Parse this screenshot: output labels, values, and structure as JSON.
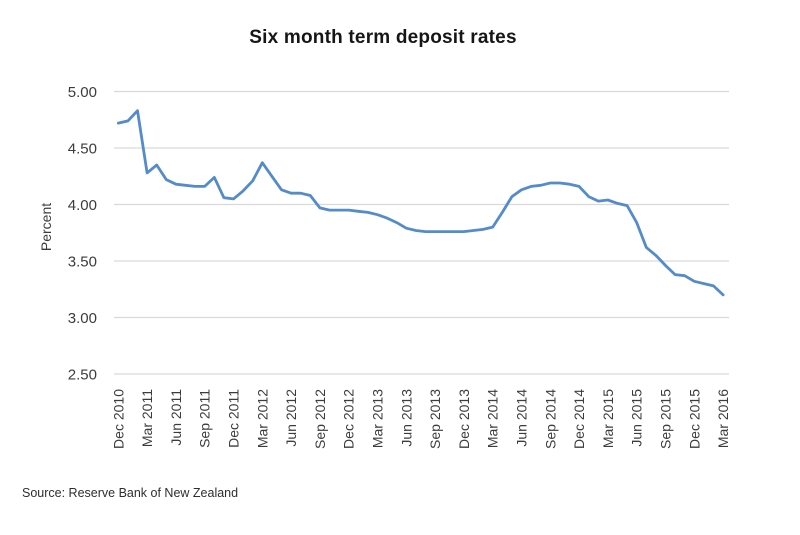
{
  "page": {
    "title": "Six month term deposit rates",
    "source_note": "Source: Reserve Bank of New Zealand"
  },
  "colors": {
    "line": "#548bc9",
    "gridline": "#d9d9d9",
    "title_text": "#161616",
    "axis_text": "#3c3c3c",
    "background": "#ffffff"
  },
  "chart_data": {
    "type": "line",
    "title": "Six month term deposit rates",
    "xlabel": "",
    "ylabel": "Percent",
    "ylim": [
      2.5,
      5.0
    ],
    "yticks": [
      5.0,
      4.5,
      4.0,
      3.5,
      3.0,
      2.5
    ],
    "ytick_decimals": 2,
    "grid": true,
    "legend_position": "none",
    "x_axis_tick_labels": [
      "Dec 2010",
      "Mar 2011",
      "Jun 2011",
      "Sep 2011",
      "Dec 2011",
      "Mar 2012",
      "Jun 2012",
      "Sep 2012",
      "Dec 2012",
      "Mar 2013",
      "Jun 2013",
      "Sep 2013",
      "Dec 2013",
      "Mar 2014",
      "Jun 2014",
      "Sep 2014",
      "Dec 2014",
      "Mar 2015",
      "Jun 2015",
      "Sep 2015",
      "Dec 2015",
      "Mar 2016"
    ],
    "x": [
      "Dec 2010",
      "Jan 2011",
      "Feb 2011",
      "Mar 2011",
      "Apr 2011",
      "May 2011",
      "Jun 2011",
      "Jul 2011",
      "Aug 2011",
      "Sep 2011",
      "Oct 2011",
      "Nov 2011",
      "Dec 2011",
      "Jan 2012",
      "Feb 2012",
      "Mar 2012",
      "Apr 2012",
      "May 2012",
      "Jun 2012",
      "Jul 2012",
      "Aug 2012",
      "Sep 2012",
      "Oct 2012",
      "Nov 2012",
      "Dec 2012",
      "Jan 2013",
      "Feb 2013",
      "Mar 2013",
      "Apr 2013",
      "May 2013",
      "Jun 2013",
      "Jul 2013",
      "Aug 2013",
      "Sep 2013",
      "Oct 2013",
      "Nov 2013",
      "Dec 2013",
      "Jan 2014",
      "Feb 2014",
      "Mar 2014",
      "Apr 2014",
      "May 2014",
      "Jun 2014",
      "Jul 2014",
      "Aug 2014",
      "Sep 2014",
      "Oct 2014",
      "Nov 2014",
      "Dec 2014",
      "Jan 2015",
      "Feb 2015",
      "Mar 2015",
      "Apr 2015",
      "May 2015",
      "Jun 2015",
      "Jul 2015",
      "Aug 2015",
      "Sep 2015",
      "Oct 2015",
      "Nov 2015",
      "Dec 2015",
      "Jan 2016",
      "Feb 2016",
      "Mar 2016"
    ],
    "series": [
      {
        "name": "Six month term deposit rate",
        "values": [
          4.72,
          4.74,
          4.83,
          4.28,
          4.35,
          4.22,
          4.18,
          4.17,
          4.16,
          4.16,
          4.24,
          4.06,
          4.05,
          4.12,
          4.21,
          4.37,
          4.25,
          4.13,
          4.1,
          4.1,
          4.08,
          3.97,
          3.95,
          3.95,
          3.95,
          3.94,
          3.93,
          3.91,
          3.88,
          3.84,
          3.79,
          3.77,
          3.76,
          3.76,
          3.76,
          3.76,
          3.76,
          3.77,
          3.78,
          3.8,
          3.93,
          4.07,
          4.13,
          4.16,
          4.17,
          4.19,
          4.19,
          4.18,
          4.16,
          4.07,
          4.03,
          4.04,
          4.01,
          3.99,
          3.84,
          3.62,
          3.55,
          3.46,
          3.38,
          3.37,
          3.32,
          3.3,
          3.28,
          3.2
        ]
      }
    ],
    "source": "Source: Reserve Bank of New Zealand"
  }
}
